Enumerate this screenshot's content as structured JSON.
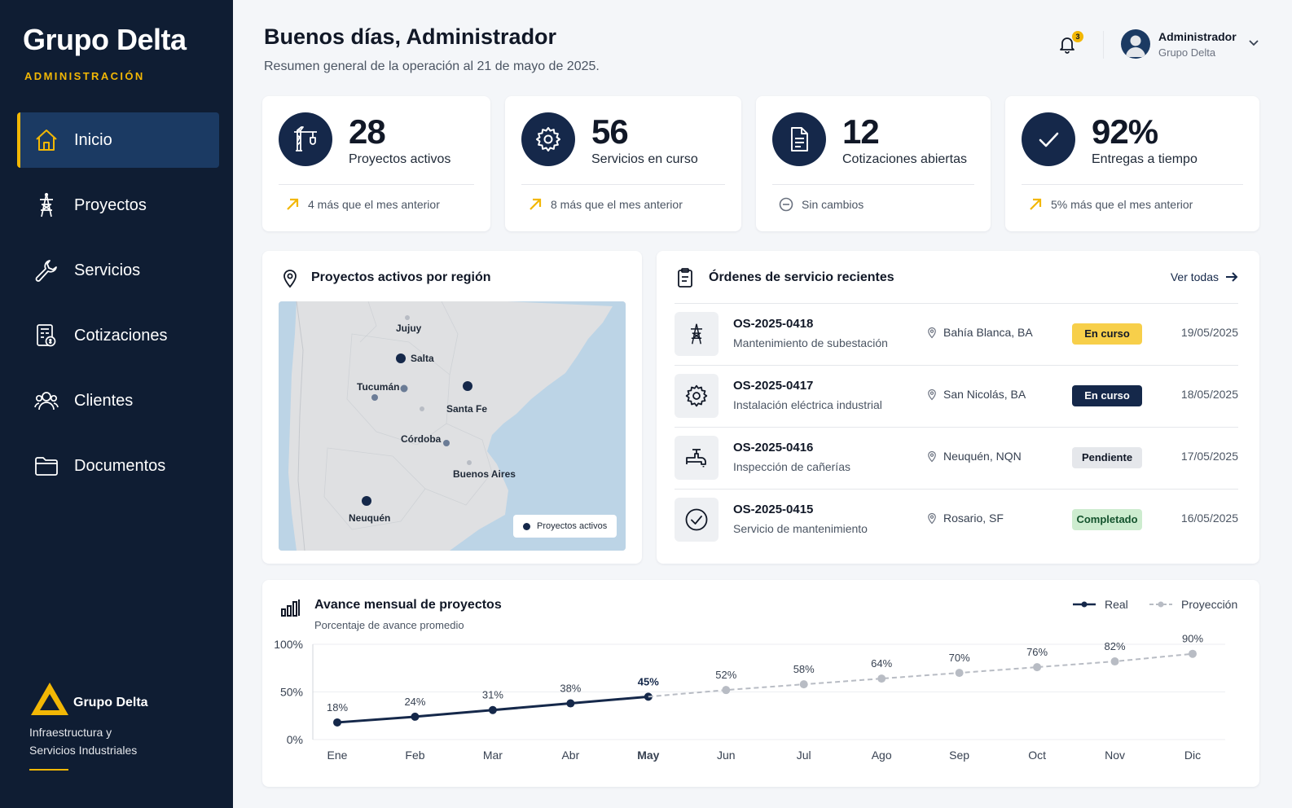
{
  "sidebar": {
    "brand": "Grupo Delta",
    "subtitle": "ADMINISTRACIÓN",
    "items": [
      {
        "label": "Inicio",
        "icon": "home-icon",
        "active": true
      },
      {
        "label": "Proyectos",
        "icon": "tower-icon"
      },
      {
        "label": "Servicios",
        "icon": "wrench-icon"
      },
      {
        "label": "Cotizaciones",
        "icon": "calculator-doc-icon"
      },
      {
        "label": "Clientes",
        "icon": "users-icon"
      },
      {
        "label": "Documentos",
        "icon": "folder-icon"
      }
    ],
    "footer": {
      "name": "Grupo Delta",
      "description": "Infraestructura y Servicios Industriales"
    }
  },
  "header": {
    "greeting": "Buenos días, Administrador",
    "subtitle": "Resumen general de la operación al 21 de mayo de 2025.",
    "notifications": "3",
    "user_name": "Administrador",
    "user_org": "Grupo Delta"
  },
  "kpis": [
    {
      "value": "28",
      "label": "Proyectos activos",
      "trend": "4 más que el mes anterior",
      "trend_type": "up",
      "icon": "crane-icon"
    },
    {
      "value": "56",
      "label": "Servicios en curso",
      "trend": "8 más que el mes anterior",
      "trend_type": "up",
      "icon": "gear-icon"
    },
    {
      "value": "12",
      "label": "Cotizaciones abiertas",
      "trend": "Sin cambios",
      "trend_type": "flat",
      "icon": "document-icon"
    },
    {
      "value": "92%",
      "label": "Entregas a tiempo",
      "trend": "5% más que el mes anterior",
      "trend_type": "up",
      "icon": "check-icon"
    }
  ],
  "map_panel": {
    "title": "Proyectos activos por región",
    "legend": "Proyectos activos",
    "cities": [
      "Jujuy",
      "Salta",
      "Tucumán",
      "Santa Fe",
      "Córdoba",
      "Buenos Aires",
      "Neuquén"
    ]
  },
  "orders": {
    "title": "Órdenes de servicio recientes",
    "link": "Ver todas",
    "rows": [
      {
        "code": "OS-2025-0418",
        "desc": "Mantenimiento de subestación",
        "location": "Bahía Blanca, BA",
        "status": "En curso",
        "status_style": "yellow",
        "date": "19/05/2025",
        "icon": "tower-icon"
      },
      {
        "code": "OS-2025-0417",
        "desc": "Instalación eléctrica industrial",
        "location": "San Nicolás, BA",
        "status": "En curso",
        "status_style": "navy",
        "date": "18/05/2025",
        "icon": "gear-icon"
      },
      {
        "code": "OS-2025-0416",
        "desc": "Inspección de cañerías",
        "location": "Neuquén, NQN",
        "status": "Pendiente",
        "status_style": "gray",
        "date": "17/05/2025",
        "icon": "faucet-icon"
      },
      {
        "code": "OS-2025-0415",
        "desc": "Servicio de mantenimiento",
        "location": "Rosario, SF",
        "status": "Completado",
        "status_style": "green",
        "date": "16/05/2025",
        "icon": "check-circle-icon"
      }
    ]
  },
  "progress_chart": {
    "title": "Avance mensual de proyectos",
    "subtitle": "Porcentaje de avance promedio",
    "legend_real": "Real",
    "legend_projection": "Proyección"
  },
  "colors": {
    "navy": "#15284a",
    "sidebar": "#0f1d33",
    "accent": "#f2b705",
    "projection": "#b8bcc4"
  },
  "chart_data": {
    "type": "line",
    "categories": [
      "Ene",
      "Feb",
      "Mar",
      "Abr",
      "May",
      "Jun",
      "Jul",
      "Ago",
      "Sep",
      "Oct",
      "Nov",
      "Dic"
    ],
    "series": [
      {
        "name": "Real",
        "values": [
          18,
          24,
          31,
          38,
          45,
          null,
          null,
          null,
          null,
          null,
          null,
          null
        ]
      },
      {
        "name": "Proyección",
        "values": [
          null,
          null,
          null,
          null,
          45,
          52,
          58,
          64,
          70,
          76,
          82,
          90
        ]
      }
    ],
    "ylim": [
      0,
      100
    ],
    "yticks": [
      "0%",
      "50%",
      "100%"
    ],
    "title": "Avance mensual de proyectos",
    "highlight_category": "May",
    "grid": true,
    "legend": "top-right"
  }
}
